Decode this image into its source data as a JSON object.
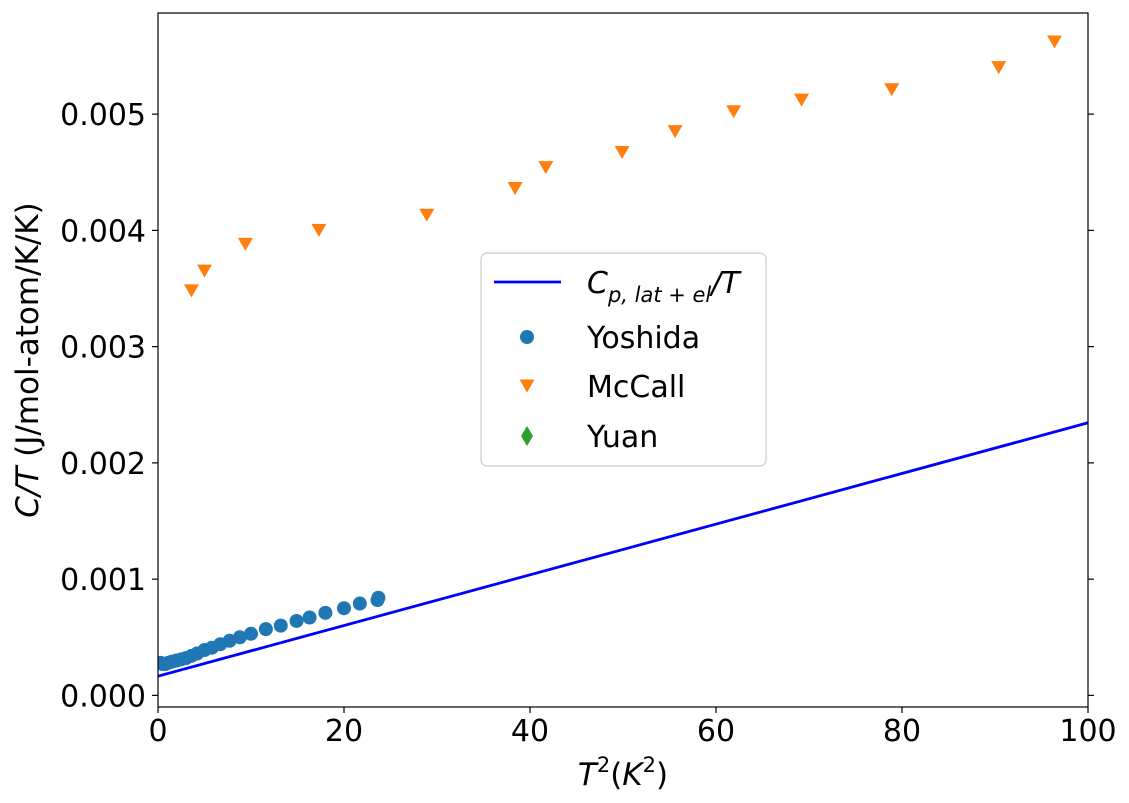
{
  "chart_data": {
    "type": "scatter",
    "xlabel": {
      "base": "T",
      "sup1": "2",
      "open": "(",
      "kbase": "K",
      "sup2": "2",
      "close": ")"
    },
    "ylabel": {
      "italic": "C/T",
      "rest": " (J/mol-atom/K/K)"
    },
    "xlim": [
      0,
      100
    ],
    "ylim": [
      -0.0001,
      0.00587
    ],
    "xticks": [
      0,
      20,
      40,
      60,
      80,
      100
    ],
    "xtick_labels": [
      "0",
      "20",
      "40",
      "60",
      "80",
      "100"
    ],
    "yticks": [
      0.0,
      0.001,
      0.002,
      0.003,
      0.004,
      0.005
    ],
    "ytick_labels": [
      "0.000",
      "0.001",
      "0.002",
      "0.003",
      "0.004",
      "0.005"
    ],
    "grid": false,
    "legend_position": "center",
    "series": [
      {
        "name": "C_{p,lat+el}/T",
        "legend_main": "C",
        "legend_sub": "p, lat + el",
        "legend_tail": "/T",
        "kind": "line",
        "color": "#0000ff",
        "x": [
          0,
          100
        ],
        "y": [
          0.000165,
          0.002345
        ]
      },
      {
        "name": "Yoshida",
        "kind": "marker",
        "marker": "circle",
        "color": "#1f77b4",
        "x": [
          0.3,
          0.5,
          0.8,
          1.1,
          1.5,
          2.0,
          2.5,
          3.0,
          3.6,
          4.2,
          5.0,
          5.8,
          6.7,
          7.7,
          8.8,
          10.0,
          11.6,
          13.2,
          14.9,
          16.3,
          18.0,
          20.0,
          21.7,
          23.6,
          23.7
        ],
        "y": [
          0.00028,
          0.00027,
          0.00027,
          0.00028,
          0.00029,
          0.0003,
          0.00031,
          0.00032,
          0.00034,
          0.00036,
          0.00039,
          0.00041,
          0.00044,
          0.00047,
          0.0005,
          0.00053,
          0.00057,
          0.0006,
          0.00064,
          0.00067,
          0.00071,
          0.00075,
          0.00079,
          0.00082,
          0.00084
        ]
      },
      {
        "name": "McCall",
        "kind": "marker",
        "marker": "triangle-down",
        "color": "#ff7f0e",
        "x": [
          3.6,
          5.0,
          9.4,
          17.3,
          28.9,
          38.4,
          41.7,
          49.9,
          55.6,
          61.9,
          69.2,
          78.9,
          90.4,
          96.4
        ],
        "y": [
          0.00348,
          0.00365,
          0.00388,
          0.004,
          0.00413,
          0.00436,
          0.00454,
          0.00467,
          0.00485,
          0.00502,
          0.00512,
          0.00521,
          0.0054,
          0.00562
        ]
      },
      {
        "name": "Yuan",
        "kind": "marker",
        "marker": "diamond",
        "color": "#2ca02c",
        "x": [],
        "y": []
      }
    ]
  }
}
